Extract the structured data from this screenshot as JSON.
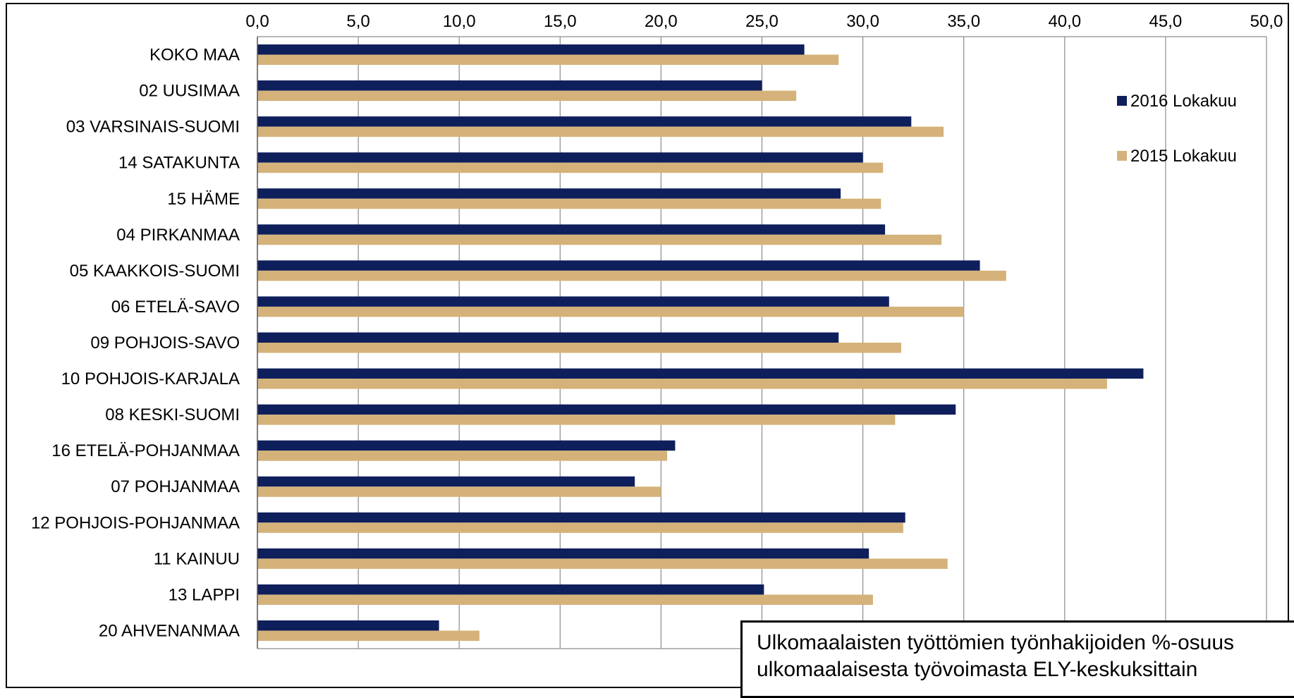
{
  "chart_data": {
    "type": "bar",
    "orientation": "horizontal",
    "title_lines": [
      "Ulkomaalaisten työttömien työnhakijoiden %-osuus",
      "ulkomaalaisesta työvoimasta ELY-keskuksittain"
    ],
    "categories": [
      "KOKO MAA",
      "02 UUSIMAA",
      "03 VARSINAIS-SUOMI",
      "14 SATAKUNTA",
      "15 HÄME",
      "04 PIRKANMAA",
      "05 KAAKKOIS-SUOMI",
      "06 ETELÄ-SAVO",
      "09 POHJOIS-SAVO",
      "10 POHJOIS-KARJALA",
      "08 KESKI-SUOMI",
      "16 ETELÄ-POHJANMAA",
      "07 POHJANMAA",
      "12 POHJOIS-POHJANMAA",
      "11 KAINUU",
      "13 LAPPI",
      "20 AHVENANMAA"
    ],
    "series": [
      {
        "name": "2016 Lokakuu",
        "color": "#0f1f5c",
        "values": [
          27.1,
          25.0,
          32.4,
          30.0,
          28.9,
          31.1,
          35.8,
          31.3,
          28.8,
          43.9,
          34.6,
          20.7,
          18.7,
          32.1,
          30.3,
          25.1,
          9.0
        ]
      },
      {
        "name": "2015 Lokakuu",
        "color": "#d4b27a",
        "values": [
          28.8,
          26.7,
          34.0,
          31.0,
          30.9,
          33.9,
          37.1,
          35.0,
          31.9,
          42.1,
          31.6,
          20.3,
          20.0,
          32.0,
          34.2,
          30.5,
          11.0
        ]
      }
    ],
    "xlim": [
      0,
      50
    ],
    "xticks": [
      "0,0",
      "5,0",
      "10,0",
      "15,0",
      "20,0",
      "25,0",
      "30,0",
      "35,0",
      "40,0",
      "45,0",
      "50,0"
    ],
    "xtick_values": [
      0,
      5,
      10,
      15,
      20,
      25,
      30,
      35,
      40,
      45,
      50
    ],
    "x_axis_position": "top",
    "grid": true,
    "legend_position": "top-right"
  }
}
